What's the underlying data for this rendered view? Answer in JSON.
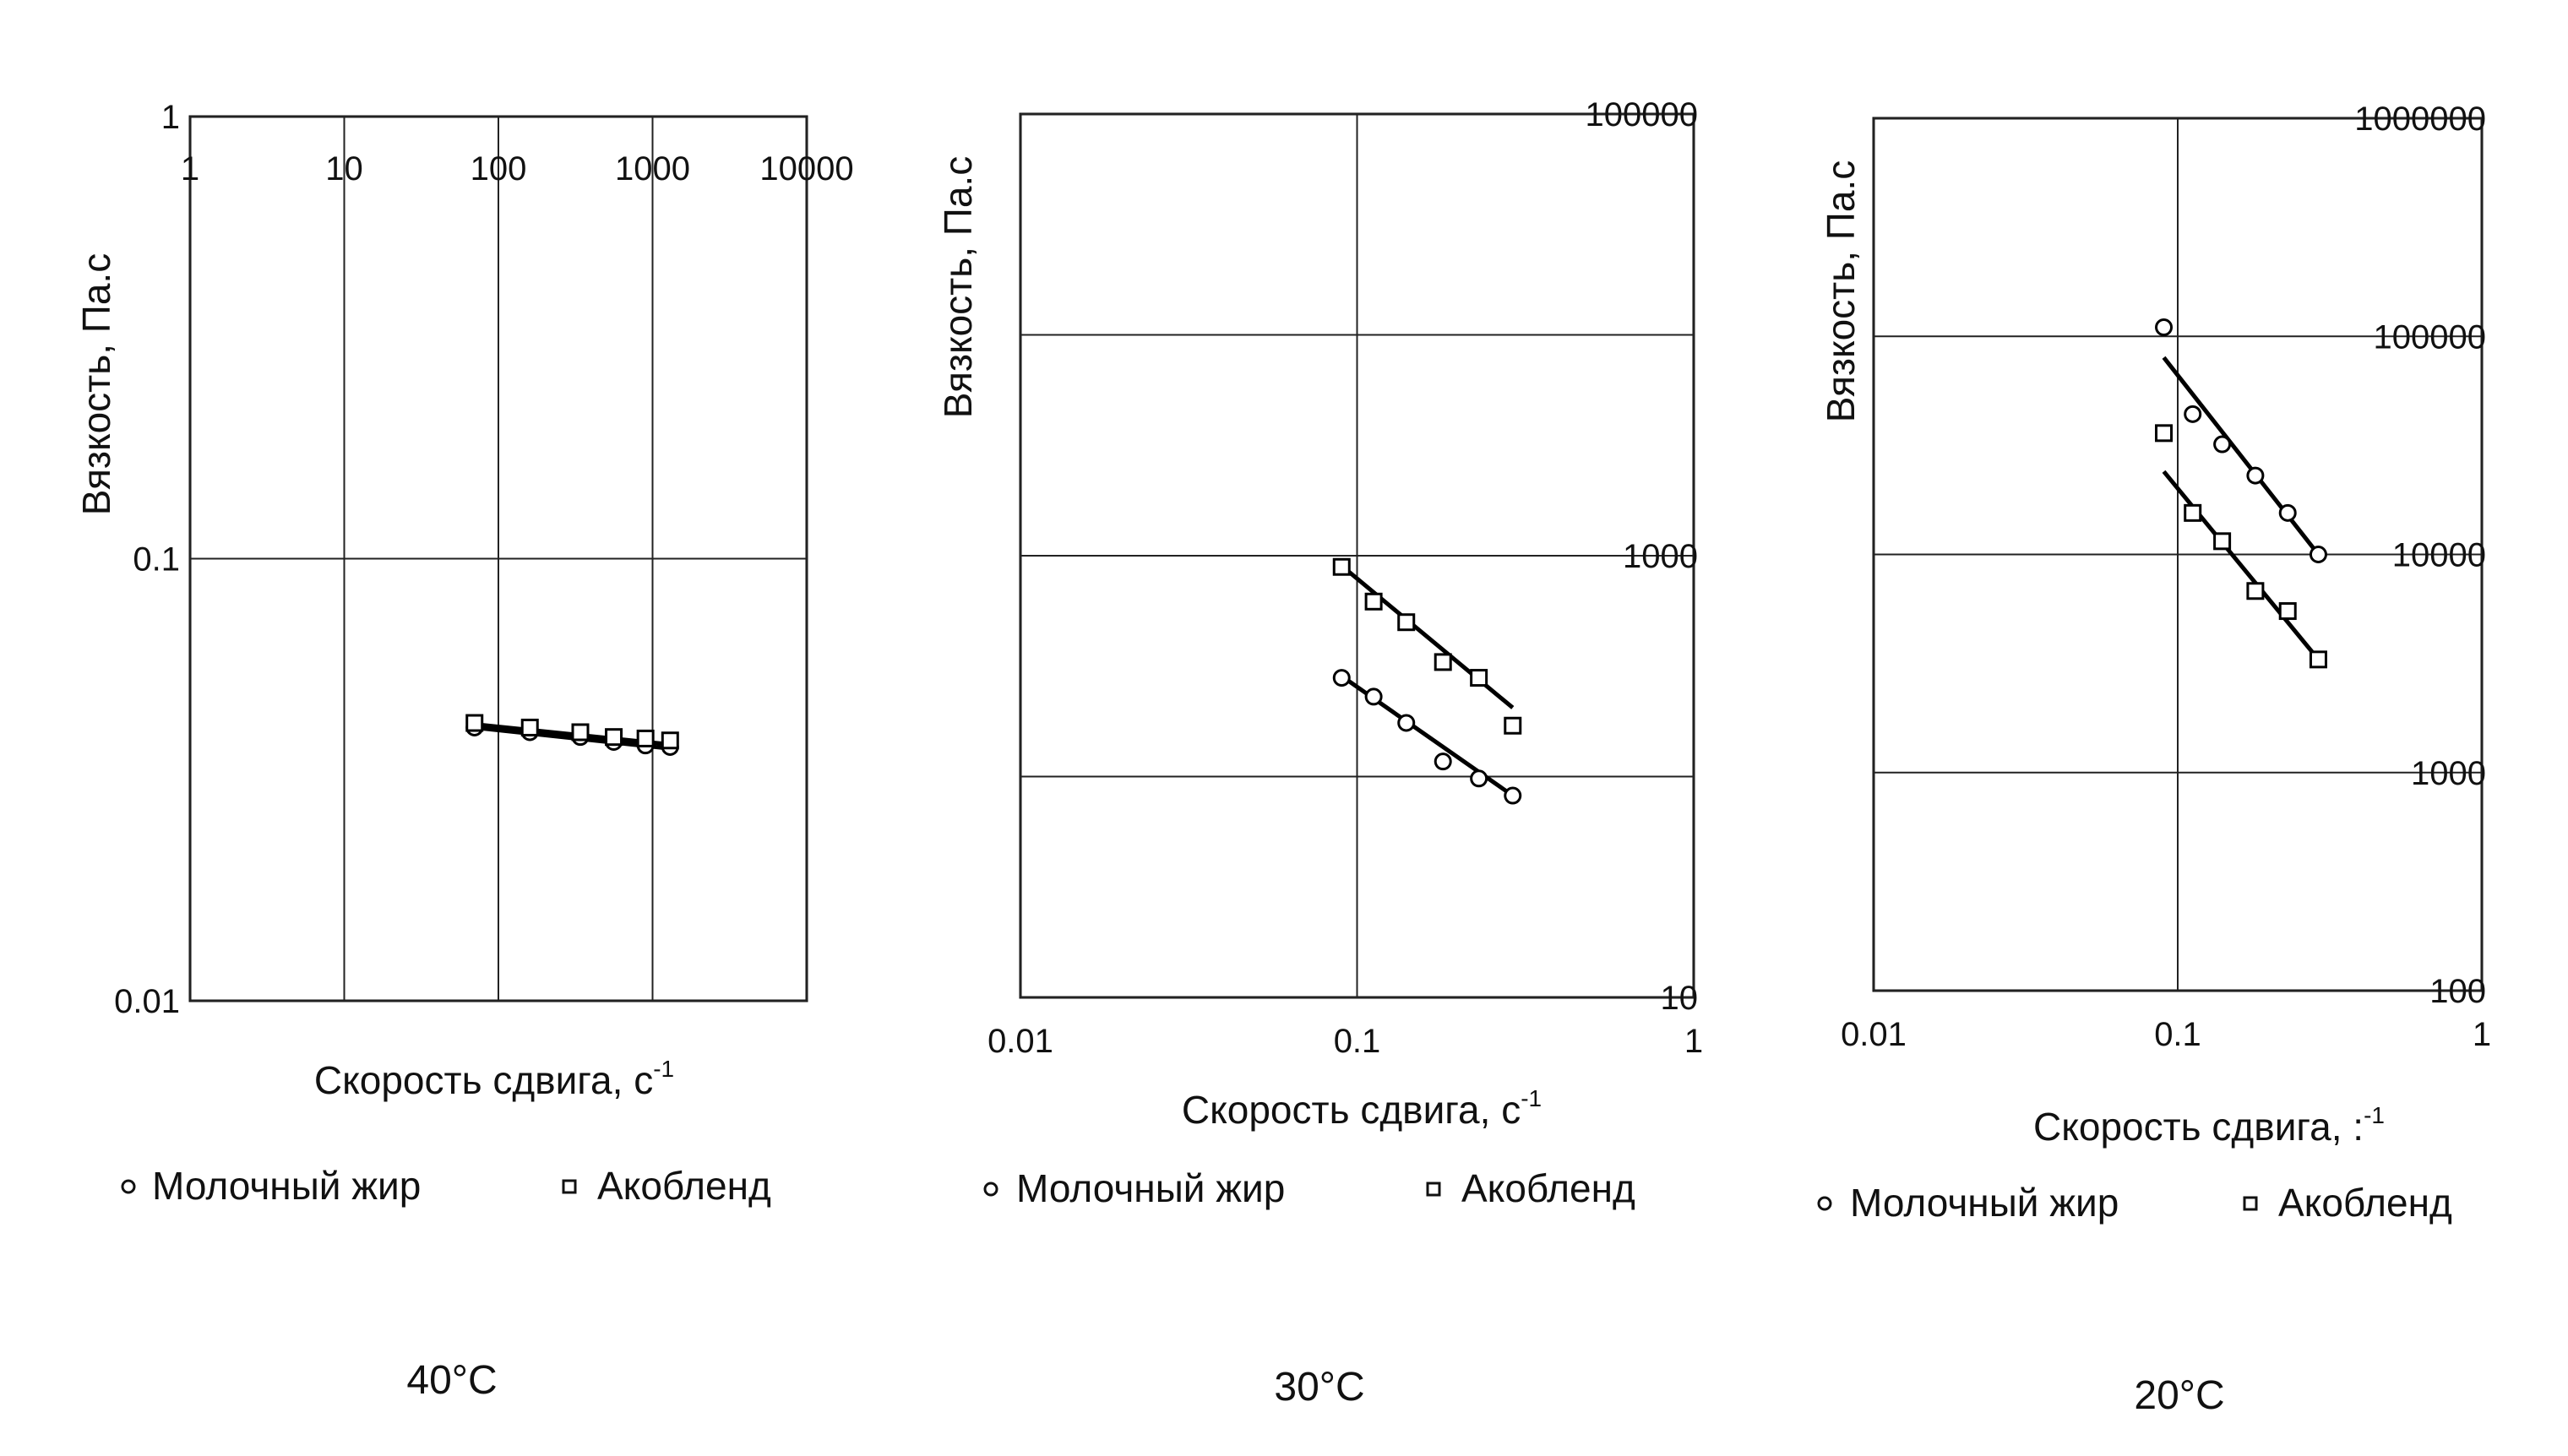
{
  "chart_data": [
    {
      "type": "scatter",
      "caption": "40°C",
      "xlabel": "Скорость сдвига, с",
      "xlabel_sup": "-1",
      "ylabel": "Вязкость, Па.с",
      "x_scale": "log",
      "y_scale": "log",
      "xlim": [
        1,
        10000
      ],
      "ylim": [
        0.01,
        1
      ],
      "x_ticks": [
        "1",
        "10",
        "100",
        "1000",
        "10000"
      ],
      "y_ticks": [
        "0.01",
        "0.1",
        "1"
      ],
      "x_tick_position": "top",
      "y_tick_position": "left",
      "grid": true,
      "legend_position": "bottom",
      "series": [
        {
          "name": "Молочный жир",
          "marker": "circle",
          "points": [
            [
              70,
              0.0415
            ],
            [
              160,
              0.0405
            ],
            [
              340,
              0.0395
            ],
            [
              560,
              0.0385
            ],
            [
              900,
              0.0378
            ],
            [
              1300,
              0.0375
            ]
          ],
          "trend": [
            [
              70,
              0.0415
            ],
            [
              1300,
              0.0372
            ]
          ]
        },
        {
          "name": "Акобленд",
          "marker": "square",
          "points": [
            [
              70,
              0.0425
            ],
            [
              160,
              0.0415
            ],
            [
              340,
              0.0405
            ],
            [
              560,
              0.0395
            ],
            [
              900,
              0.0392
            ],
            [
              1300,
              0.0388
            ]
          ],
          "trend": [
            [
              70,
              0.0422
            ],
            [
              1300,
              0.038
            ]
          ]
        }
      ]
    },
    {
      "type": "scatter",
      "caption": "30°C",
      "xlabel": "Скорость сдвига, с",
      "xlabel_sup": "-1",
      "ylabel": "Вязкость, Па.с",
      "x_scale": "log",
      "y_scale": "log",
      "xlim": [
        0.01,
        1
      ],
      "ylim": [
        10,
        100000
      ],
      "x_ticks": [
        "0.01",
        "0.1",
        "1"
      ],
      "y_ticks": [
        "10",
        "1000",
        "100000"
      ],
      "x_tick_position": "bottom",
      "y_tick_position": "right",
      "grid": true,
      "legend_position": "bottom",
      "series": [
        {
          "name": "Молочный жир",
          "marker": "circle",
          "points": [
            [
              0.09,
              280
            ],
            [
              0.112,
              230
            ],
            [
              0.14,
              175
            ],
            [
              0.18,
              117
            ],
            [
              0.23,
              98
            ],
            [
              0.29,
              82
            ]
          ],
          "trend": [
            [
              0.09,
              285
            ],
            [
              0.29,
              82
            ]
          ]
        },
        {
          "name": "Акобленд",
          "marker": "square",
          "points": [
            [
              0.09,
              890
            ],
            [
              0.112,
              620
            ],
            [
              0.14,
              500
            ],
            [
              0.18,
              330
            ],
            [
              0.23,
              280
            ],
            [
              0.29,
              170
            ]
          ],
          "trend": [
            [
              0.09,
              900
            ],
            [
              0.29,
              205
            ]
          ]
        }
      ]
    },
    {
      "type": "scatter",
      "caption": "20°C",
      "xlabel": "Скорость сдвига, :",
      "xlabel_sup": "-1",
      "ylabel": "Вязкость, Па.с",
      "x_scale": "log",
      "y_scale": "log",
      "xlim": [
        0.01,
        1
      ],
      "ylim": [
        100,
        1000000
      ],
      "x_ticks": [
        "0.01",
        "0.1",
        "1"
      ],
      "y_ticks": [
        "100",
        "1000",
        "10000",
        "100000",
        "1000000"
      ],
      "y_tick_text": [
        "100",
        "1000",
        "10000",
        "100000",
        "1000000"
      ],
      "x_tick_position": "bottom",
      "y_tick_position": "right",
      "grid": true,
      "legend_position": "bottom",
      "series": [
        {
          "name": "Молочный жир",
          "marker": "circle",
          "points": [
            [
              0.09,
              110000
            ],
            [
              0.112,
              44000
            ],
            [
              0.14,
              32000
            ],
            [
              0.18,
              23000
            ],
            [
              0.23,
              15500
            ],
            [
              0.29,
              10000
            ]
          ],
          "trend": [
            [
              0.09,
              80000
            ],
            [
              0.29,
              10000
            ]
          ]
        },
        {
          "name": "Акобленд",
          "marker": "square",
          "points": [
            [
              0.09,
              36000
            ],
            [
              0.112,
              15500
            ],
            [
              0.14,
              11500
            ],
            [
              0.18,
              6800
            ],
            [
              0.23,
              5500
            ],
            [
              0.29,
              3300
            ]
          ],
          "trend": [
            [
              0.09,
              24000
            ],
            [
              0.29,
              3300
            ]
          ]
        }
      ]
    }
  ]
}
